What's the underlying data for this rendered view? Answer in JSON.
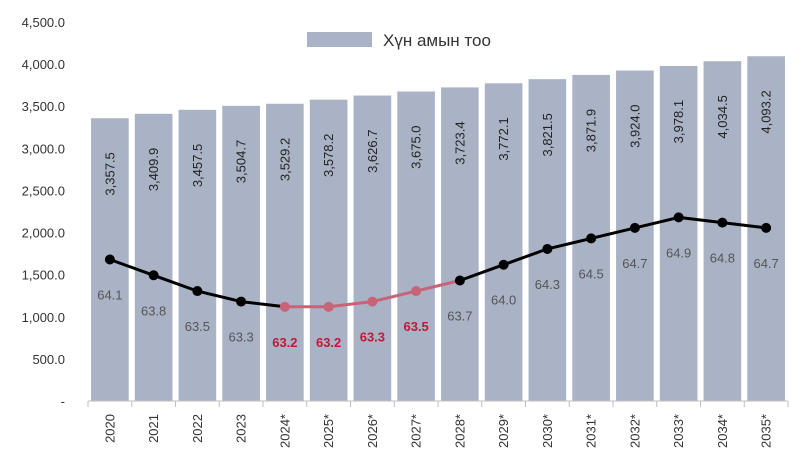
{
  "chart_data": {
    "type": "bar",
    "categories": [
      "2020",
      "2021",
      "2022",
      "2023",
      "2024*",
      "2025*",
      "2026*",
      "2027*",
      "2028*",
      "2029*",
      "2030*",
      "2031*",
      "2032*",
      "2033*",
      "2034*",
      "2035*"
    ],
    "series": [
      {
        "name": "Хүн амын тоо",
        "type": "bar",
        "values": [
          3357.5,
          3409.9,
          3457.5,
          3504.7,
          3529.2,
          3578.2,
          3626.7,
          3675.0,
          3723.4,
          3772.1,
          3821.5,
          3871.9,
          3924.0,
          3978.1,
          4034.5,
          4093.2
        ],
        "labels": [
          "3,357.5",
          "3,409.9",
          "3,457.5",
          "3,504.7",
          "3,529.2",
          "3,578.2",
          "3,626.7",
          "3,675.0",
          "3,723.4",
          "3,772.1",
          "3,821.5",
          "3,871.9",
          "3,924.0",
          "3,978.1",
          "4,034.5",
          "4,093.2"
        ]
      },
      {
        "type": "line",
        "values": [
          64.1,
          63.8,
          63.5,
          63.3,
          63.2,
          63.2,
          63.3,
          63.5,
          63.7,
          64.0,
          64.3,
          64.5,
          64.7,
          64.9,
          64.8,
          64.7
        ],
        "labels": [
          "64.1",
          "63.8",
          "63.5",
          "63.3",
          "63.2",
          "63.2",
          "63.3",
          "63.5",
          "63.7",
          "64.0",
          "64.3",
          "64.5",
          "64.7",
          "64.9",
          "64.8",
          "64.7"
        ],
        "highlight_range": [
          4,
          8
        ]
      }
    ],
    "yticks": [
      "-",
      "500.0",
      "1,000.0",
      "1,500.0",
      "2,000.0",
      "2,500.0",
      "3,000.0",
      "3,500.0",
      "4,000.0",
      "4,500.0"
    ],
    "ylim": [
      0,
      4500
    ],
    "grid": false,
    "legend": "top-center",
    "colors": {
      "bar": "#a9b3c5",
      "line": "#000000",
      "line_highlight": "#c86478",
      "highlight_text": "#c0193a"
    }
  }
}
